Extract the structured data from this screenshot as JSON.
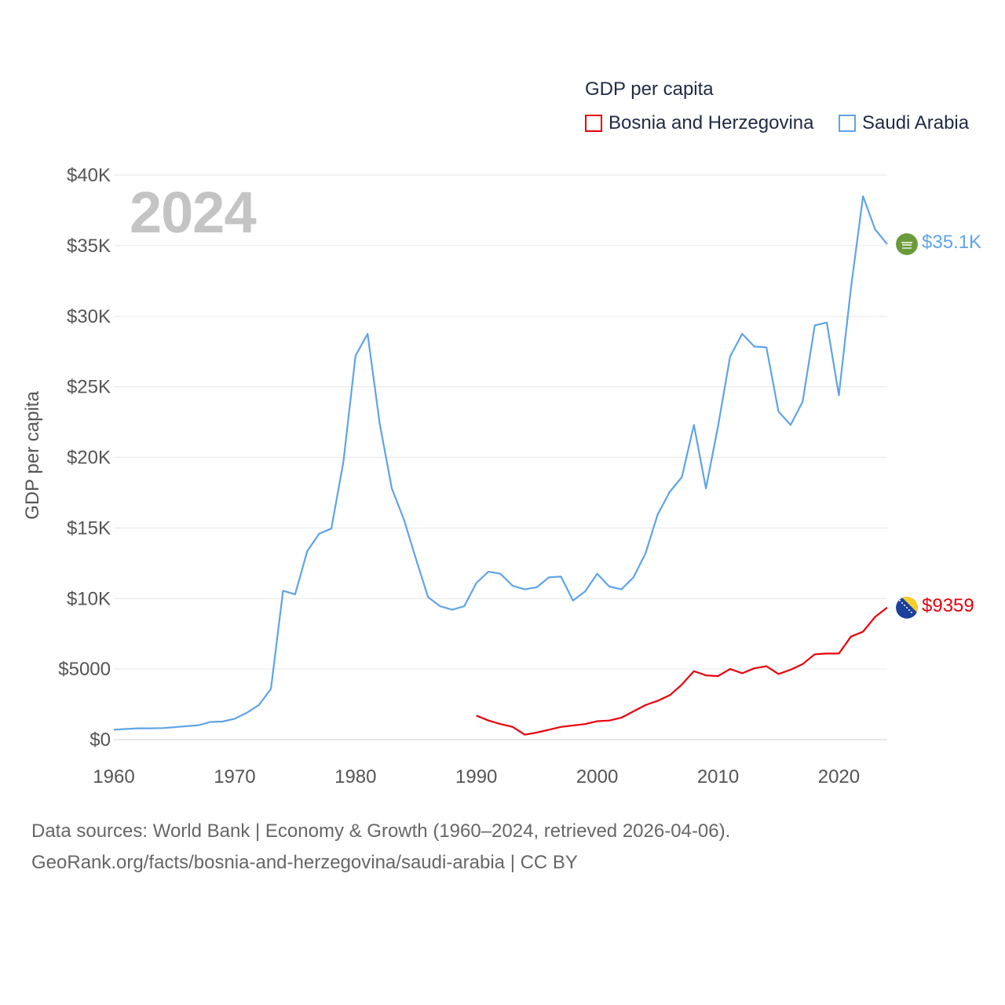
{
  "legend": {
    "title": "GDP per capita",
    "items": [
      {
        "label": "Bosnia and Herzegovina",
        "color": "#e8000b"
      },
      {
        "label": "Saudi Arabia",
        "color": "#5fa4e6"
      }
    ]
  },
  "year_label": "2024",
  "end_labels": {
    "saudi": "$35.1K",
    "bosnia": "$9359"
  },
  "flags": {
    "saudi": "saudi-arabia-flag",
    "bosnia": "bosnia-flag"
  },
  "source": {
    "line1": "Data sources: World Bank | Economy & Growth (1960–2024, retrieved 2026-04-06).",
    "line2": "GeoRank.org/facts/bosnia-and-herzegovina/saudi-arabia | CC BY"
  },
  "chart_data": {
    "type": "line",
    "title": "GDP per capita",
    "xlabel": "",
    "ylabel": "GDP per capita",
    "xlim": [
      1960,
      2024
    ],
    "ylim": [
      0,
      40000
    ],
    "x_ticks": [
      1960,
      1970,
      1980,
      1990,
      2000,
      2010,
      2020
    ],
    "x_tick_labels": [
      "1960",
      "1970",
      "1980",
      "1990",
      "2000",
      "2010",
      "2020"
    ],
    "y_ticks": [
      0,
      5000,
      10000,
      15000,
      20000,
      25000,
      30000,
      35000,
      40000
    ],
    "y_tick_labels": [
      "$0",
      "$5000",
      "$10K",
      "$15K",
      "$20K",
      "$25K",
      "$30K",
      "$35K",
      "$40K"
    ],
    "grid": true,
    "series": [
      {
        "name": "Saudi Arabia",
        "color": "#5fa4e6",
        "x": [
          1960,
          1961,
          1962,
          1963,
          1964,
          1965,
          1966,
          1967,
          1968,
          1969,
          1970,
          1971,
          1972,
          1973,
          1974,
          1975,
          1976,
          1977,
          1978,
          1979,
          1980,
          1981,
          1982,
          1983,
          1984,
          1985,
          1986,
          1987,
          1988,
          1989,
          1990,
          1991,
          1992,
          1993,
          1994,
          1995,
          1996,
          1997,
          1998,
          1999,
          2000,
          2001,
          2002,
          2003,
          2004,
          2005,
          2006,
          2007,
          2008,
          2009,
          2010,
          2011,
          2012,
          2013,
          2014,
          2015,
          2016,
          2017,
          2018,
          2019,
          2020,
          2021,
          2022,
          2023,
          2024
        ],
        "values": [
          700,
          750,
          800,
          800,
          820,
          880,
          950,
          1020,
          1250,
          1280,
          1480,
          1900,
          2450,
          3600,
          10550,
          10300,
          13350,
          14600,
          14950,
          19700,
          27200,
          28750,
          22400,
          17800,
          15600,
          12800,
          10100,
          9450,
          9200,
          9450,
          11100,
          11900,
          11750,
          10900,
          10650,
          10800,
          11500,
          11550,
          9850,
          10500,
          11750,
          10850,
          10650,
          11500,
          13200,
          15950,
          17550,
          18600,
          22300,
          17800,
          22200,
          27150,
          28750,
          27850,
          27800,
          23250,
          22300,
          23950,
          29350,
          29550,
          24400,
          32000,
          38500,
          36150,
          35100
        ]
      },
      {
        "name": "Bosnia and Herzegovina",
        "color": "#e8000b",
        "x": [
          1990,
          1991,
          1992,
          1993,
          1994,
          1995,
          1996,
          1997,
          1998,
          1999,
          2000,
          2001,
          2002,
          2003,
          2004,
          2005,
          2006,
          2007,
          2008,
          2009,
          2010,
          2011,
          2012,
          2013,
          2014,
          2015,
          2016,
          2017,
          2018,
          2019,
          2020,
          2021,
          2022,
          2023,
          2024
        ],
        "values": [
          1700,
          1350,
          1100,
          900,
          350,
          500,
          700,
          900,
          1000,
          1100,
          1300,
          1350,
          1550,
          2000,
          2450,
          2750,
          3150,
          3900,
          4850,
          4550,
          4500,
          5000,
          4700,
          5050,
          5200,
          4650,
          4950,
          5350,
          6050,
          6100,
          6100,
          7300,
          7650,
          8700,
          9359
        ]
      }
    ]
  }
}
